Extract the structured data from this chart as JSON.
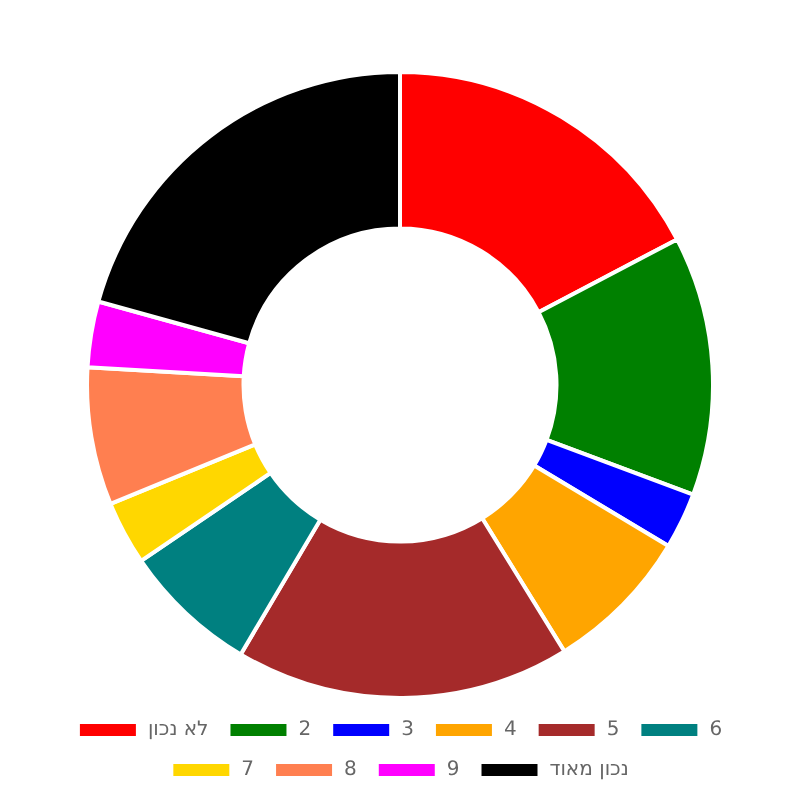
{
  "chart_data": {
    "type": "donut",
    "categories": [
      "לא נכון",
      "2",
      "3",
      "4",
      "5",
      "6",
      "7",
      "8",
      "9",
      "נכון מאוד"
    ],
    "values": [
      17.3,
      13.4,
      2.9,
      7.6,
      17.3,
      7,
      3.3,
      7.1,
      3.4,
      20.7
    ],
    "colors": [
      "#ff0000",
      "#008000",
      "#0000ff",
      "#ffa500",
      "#a52a2a",
      "#008080",
      "#ffd700",
      "#ff7f50",
      "#ff00ff",
      "#000000"
    ],
    "legend": "bottom"
  }
}
